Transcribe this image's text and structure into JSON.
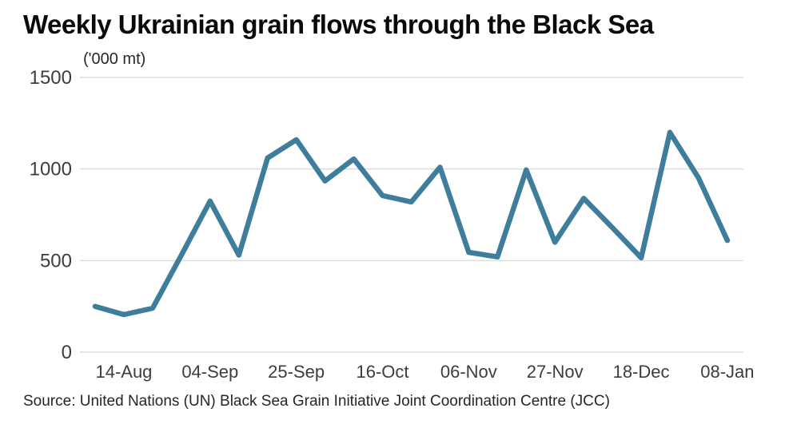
{
  "title": "Weekly Ukrainian grain flows through the Black Sea",
  "units_label": "('000 mt)",
  "source": "Source: United Nations (UN) Black Sea Grain Initiative Joint Coordination Centre (JCC)",
  "colors": {
    "line": "#3e7e9c",
    "grid": "#dcdcdc",
    "axis_text": "#3d3d3d",
    "title_text": "#0a0a0a",
    "background": "#ffffff"
  },
  "chart_data": {
    "type": "line",
    "title": "Weekly Ukrainian grain flows through the Black Sea",
    "ylabel": "('000 mt)",
    "xlabel": "",
    "grid": "horizontal gridlines only",
    "legend": "none",
    "ylim": [
      0,
      1500
    ],
    "y_ticks": [
      0,
      500,
      1000,
      1500
    ],
    "x": [
      "07-Aug",
      "14-Aug",
      "21-Aug",
      "28-Aug",
      "04-Sep",
      "11-Sep",
      "18-Sep",
      "25-Sep",
      "02-Oct",
      "09-Oct",
      "16-Oct",
      "23-Oct",
      "30-Oct",
      "06-Nov",
      "13-Nov",
      "20-Nov",
      "27-Nov",
      "04-Dec",
      "11-Dec",
      "18-Dec",
      "25-Dec",
      "01-Jan",
      "08-Jan"
    ],
    "values": [
      250,
      205,
      240,
      530,
      825,
      530,
      1060,
      1160,
      935,
      1055,
      855,
      820,
      1010,
      545,
      520,
      995,
      600,
      840,
      680,
      515,
      1200,
      950,
      610
    ],
    "x_tick_labels": [
      "14-Aug",
      "04-Sep",
      "25-Sep",
      "16-Oct",
      "06-Nov",
      "27-Nov",
      "18-Dec",
      "08-Jan"
    ],
    "x_tick_indices": [
      1,
      4,
      7,
      10,
      13,
      16,
      19,
      22
    ]
  }
}
